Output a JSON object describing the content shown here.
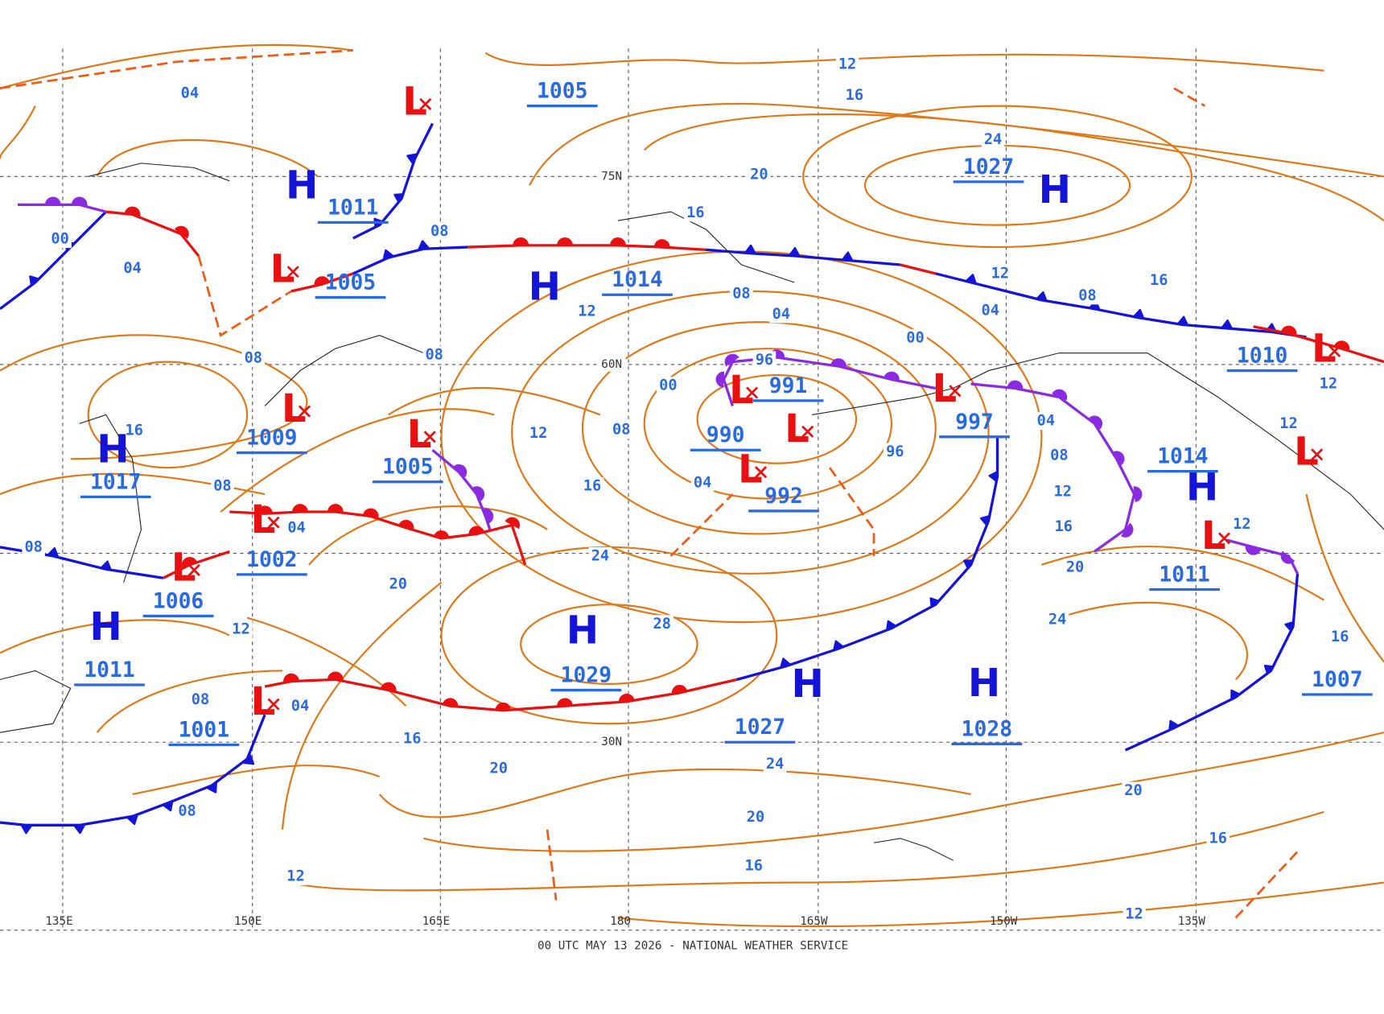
{
  "map": {
    "footer": "00 UTC MAY 13 2026 - NATIONAL WEATHER SERVICE",
    "longitude_labels": [
      "135E",
      "150E",
      "165E",
      "180",
      "165W",
      "150W",
      "135W"
    ],
    "latitude_labels": [
      "75N",
      "60N",
      "30N"
    ],
    "pressure_centers": [
      {
        "symbol": "H",
        "pressure": 1011
      },
      {
        "symbol": "L"
      },
      {
        "symbol": "L",
        "pressure": 1005
      },
      {
        "pressure": 1005
      },
      {
        "symbol": "H",
        "pressure": 1014
      },
      {
        "symbol": "H",
        "pressure": 1027
      },
      {
        "symbol": "L",
        "pressure": 1009
      },
      {
        "symbol": "L",
        "pressure": 1005
      },
      {
        "symbol": "H",
        "pressure": 1017
      },
      {
        "symbol": "L",
        "pressure": 1002
      },
      {
        "symbol": "L",
        "pressure": 1006
      },
      {
        "symbol": "H",
        "pressure": 1011
      },
      {
        "symbol": "L",
        "pressure": 1001
      },
      {
        "symbol": "H",
        "pressure": 1029
      },
      {
        "symbol": "H",
        "pressure": 1027
      },
      {
        "symbol": "H",
        "pressure": 1028
      },
      {
        "symbol": "L",
        "pressure": 991
      },
      {
        "pressure": 990
      },
      {
        "symbol": "L"
      },
      {
        "symbol": "L",
        "pressure": 992
      },
      {
        "symbol": "L",
        "pressure": 997
      },
      {
        "symbol": "L",
        "pressure": 1010
      },
      {
        "symbol": "H",
        "pressure": 1014
      },
      {
        "symbol": "L",
        "pressure": 1011
      },
      {
        "symbol": "L"
      },
      {
        "pressure": 1007
      }
    ],
    "isobar_labels": [
      "04",
      "12",
      "16",
      "24",
      "20",
      "16",
      "08",
      "00",
      "04",
      "08",
      "04",
      "12",
      "12",
      "16",
      "08",
      "04",
      "00",
      "08",
      "08",
      "96",
      "00",
      "12",
      "04",
      "16",
      "12",
      "08",
      "96",
      "08",
      "04",
      "16",
      "12",
      "08",
      "04",
      "16",
      "08",
      "12",
      "12",
      "24",
      "20",
      "20",
      "12",
      "28",
      "24",
      "16",
      "08",
      "04",
      "16",
      "20",
      "24",
      "08",
      "20",
      "20",
      "16",
      "16",
      "12",
      "12"
    ]
  }
}
